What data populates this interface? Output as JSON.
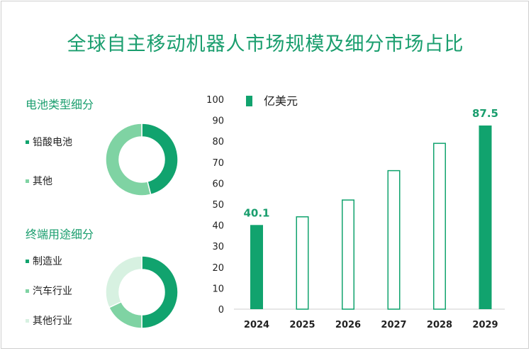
{
  "title": "全球自主移动机器人市场规模及细分市场占比",
  "battery_section": {
    "title": "电池类型细分",
    "legend": [
      "铅酸电池",
      "其他"
    ]
  },
  "enduse_section": {
    "title": "终端用途细分",
    "legend": [
      "制造业",
      "汽车行业",
      "其他行业"
    ]
  },
  "colors": {
    "accent": "#1a9e6e",
    "bar_fill": "#11a36e",
    "battery": [
      "#11a36e",
      "#7fd3a3"
    ],
    "enduse": [
      "#11a36e",
      "#7fd3a3",
      "#d7f1e1"
    ]
  },
  "chart_data": [
    {
      "type": "bar",
      "legend": [
        "亿美元"
      ],
      "categories": [
        "2024",
        "2025",
        "2026",
        "2027",
        "2028",
        "2029"
      ],
      "values": [
        40.1,
        44,
        52,
        66,
        79,
        87.5
      ],
      "filled": [
        true,
        false,
        false,
        false,
        false,
        true
      ],
      "data_labels": [
        "40.1",
        "",
        "",
        "",
        "",
        "87.5"
      ],
      "ylim": [
        0,
        100
      ],
      "yticks": [
        0,
        10,
        20,
        30,
        40,
        50,
        60,
        70,
        80,
        90,
        100
      ],
      "grid": false
    },
    {
      "type": "pie",
      "name": "电池类型细分",
      "labels": [
        "铅酸电池",
        "其他"
      ],
      "values": [
        46,
        54
      ],
      "donut": true
    },
    {
      "type": "pie",
      "name": "终端用途细分",
      "labels": [
        "制造业",
        "汽车行业",
        "其他行业"
      ],
      "values": [
        50,
        18,
        32
      ],
      "donut": true
    }
  ]
}
